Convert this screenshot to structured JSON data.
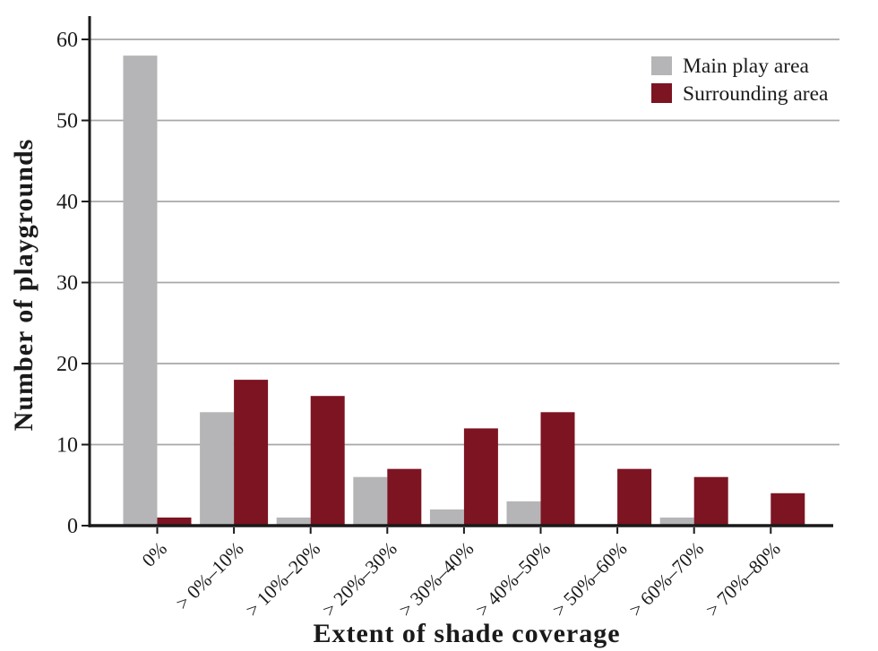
{
  "chart_data": {
    "type": "bar",
    "title": "",
    "xlabel": "Extent of shade coverage",
    "ylabel": "Number of playgrounds",
    "categories": [
      "0%",
      "> 0%–10%",
      "> 10%–20%",
      "> 20%–30%",
      "> 30%–40%",
      "> 40%–50%",
      "> 50%–60%",
      "> 60%–70%",
      "> 70%–80%"
    ],
    "series": [
      {
        "name": "Main play area",
        "color": "#b5b5b7",
        "values": [
          58,
          14,
          1,
          6,
          2,
          3,
          0,
          1,
          0
        ]
      },
      {
        "name": "Surrounding area",
        "color": "#7d1422",
        "values": [
          1,
          18,
          16,
          7,
          12,
          14,
          7,
          6,
          4
        ]
      }
    ],
    "ylim": [
      0,
      60
    ],
    "yticks": [
      0,
      10,
      20,
      30,
      40,
      50,
      60
    ],
    "grid": "horizontal",
    "legend_position": "top-right"
  },
  "style": {
    "background": "#ffffff",
    "axis_color": "#1a1a1a",
    "gridline_color": "#a8a8a8",
    "text_color": "#1a1a1a"
  }
}
